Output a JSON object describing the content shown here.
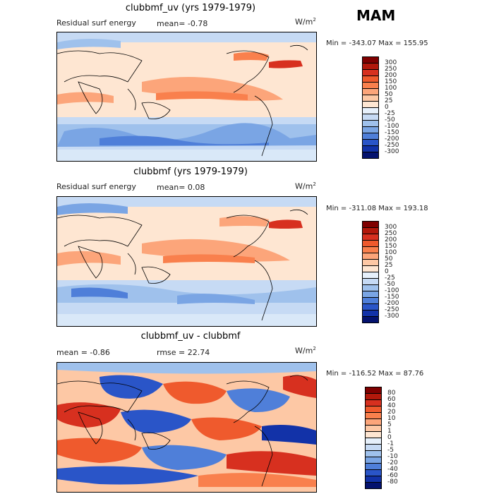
{
  "season": "MAM",
  "panels": [
    {
      "id": "panel1",
      "title": "clubbmf_uv (yrs 1979-1979)",
      "left_label": "Residual surf energy",
      "center_label": "mean=  -0.78",
      "units_label": "W/m",
      "units_sup": "2",
      "minmax": "Min = -343.07 Max =  155.95",
      "colorbar_levels": [
        "300",
        "250",
        "200",
        "150",
        "100",
        "50",
        "25",
        "0",
        "-25",
        "-50",
        "-100",
        "-150",
        "-200",
        "-250",
        "-300"
      ],
      "colorbar_colors": [
        "#7f0000",
        "#b2180b",
        "#d7301f",
        "#ef5a2d",
        "#f9804d",
        "#fca57a",
        "#fdc8a5",
        "#fee6d2",
        "#e6f0fb",
        "#c6daf4",
        "#9fc1ec",
        "#7aa5e4",
        "#4f7fd9",
        "#2a55c8",
        "#1232a8",
        "#04126e"
      ]
    },
    {
      "id": "panel2",
      "title": "clubbmf (yrs 1979-1979)",
      "left_label": "Residual surf energy",
      "center_label": "mean=   0.08",
      "units_label": "W/m",
      "units_sup": "2",
      "minmax": "Min = -311.08 Max =  193.18",
      "colorbar_levels": [
        "300",
        "250",
        "200",
        "150",
        "100",
        "50",
        "25",
        "0",
        "-25",
        "-50",
        "-100",
        "-150",
        "-200",
        "-250",
        "-300"
      ],
      "colorbar_colors": [
        "#7f0000",
        "#b2180b",
        "#d7301f",
        "#ef5a2d",
        "#f9804d",
        "#fca57a",
        "#fdc8a5",
        "#fee6d2",
        "#e6f0fb",
        "#c6daf4",
        "#9fc1ec",
        "#7aa5e4",
        "#4f7fd9",
        "#2a55c8",
        "#1232a8",
        "#04126e"
      ]
    },
    {
      "id": "panel3",
      "title": "clubbmf_uv - clubbmf",
      "left_label": "mean =  -0.86",
      "center_label": "rmse =  22.74",
      "units_label": "W/m",
      "units_sup": "2",
      "minmax": "Min = -116.52 Max =   87.76",
      "colorbar_levels": [
        "80",
        "60",
        "40",
        "20",
        "10",
        "5",
        "1",
        "0",
        "-1",
        "-5",
        "-10",
        "-20",
        "-40",
        "-60",
        "-80"
      ],
      "colorbar_colors": [
        "#7f0000",
        "#b2180b",
        "#d7301f",
        "#ef5a2d",
        "#f9804d",
        "#fca57a",
        "#fdc8a5",
        "#fee6d2",
        "#e6f0fb",
        "#c6daf4",
        "#9fc1ec",
        "#7aa5e4",
        "#4f7fd9",
        "#2a55c8",
        "#1232a8",
        "#04126e"
      ]
    }
  ]
}
